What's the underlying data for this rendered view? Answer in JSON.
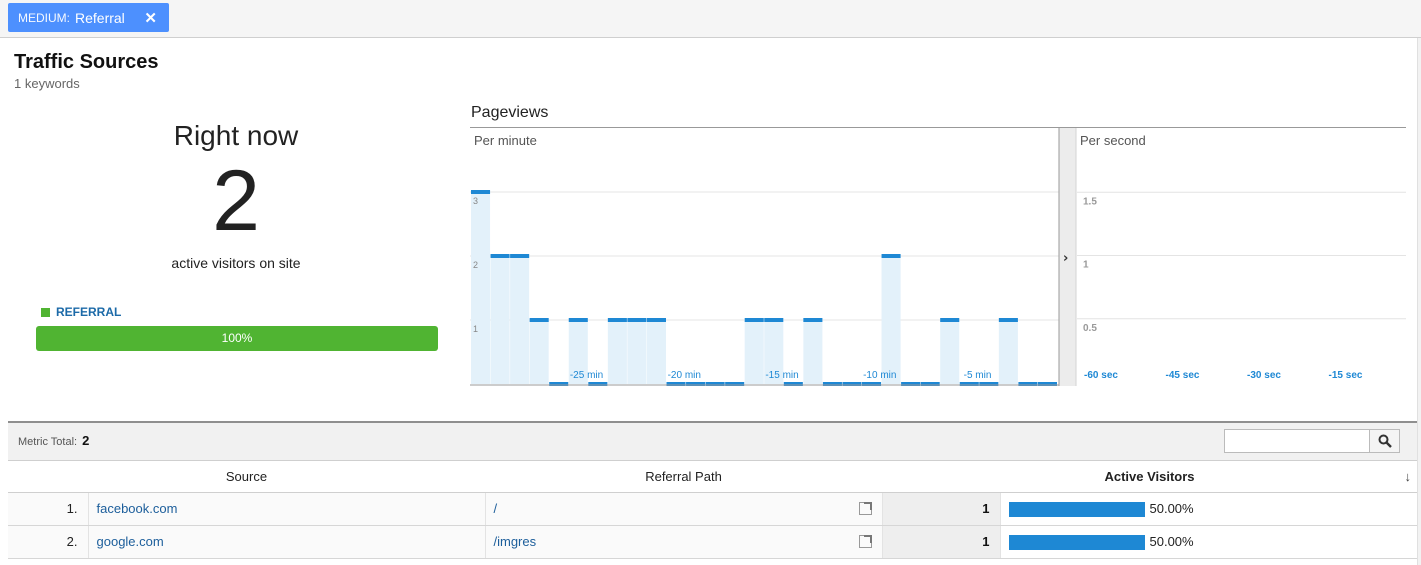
{
  "filter": {
    "key": "MEDIUM:",
    "value": "Referral",
    "close": "✕"
  },
  "header": {
    "title": "Traffic Sources",
    "subtitle": "1 keywords"
  },
  "summary": {
    "right_now": "Right now",
    "count": "2",
    "active_label": "active visitors on site",
    "legend": "REFERRAL",
    "percent_label": "100%",
    "percent": 100,
    "bar_color": "#50b432"
  },
  "pageviews": {
    "title": "Pageviews",
    "per_minute_label": "Per minute",
    "per_second_label": "Per second",
    "expand_icon": "chevron-right-icon"
  },
  "chart_data": [
    {
      "type": "bar",
      "title": "Per minute",
      "x": [
        -30,
        -29,
        -28,
        -27,
        -26,
        -25,
        -24,
        -23,
        -22,
        -21,
        -20,
        -19,
        -18,
        -17,
        -16,
        -15,
        -14,
        -13,
        -12,
        -11,
        -10,
        -9,
        -8,
        -7,
        -6,
        -5,
        -4,
        -3,
        -2,
        -1
      ],
      "values": [
        3,
        2,
        2,
        1,
        0,
        1,
        0,
        1,
        1,
        1,
        0,
        0,
        0,
        0,
        1,
        1,
        0,
        1,
        0,
        0,
        0,
        2,
        0,
        0,
        1,
        0,
        0,
        1,
        0,
        0
      ],
      "xticks": [
        -25,
        -20,
        -15,
        -10,
        -5
      ],
      "xtick_labels": [
        "-25 min",
        "-20 min",
        "-15 min",
        "-10 min",
        "-5 min"
      ],
      "yticks": [
        1,
        2,
        3
      ],
      "ytick_labels": [
        "1",
        "2",
        "3"
      ],
      "ylim": [
        0,
        3
      ],
      "grid": true,
      "color": "#1e88d4"
    },
    {
      "type": "bar",
      "title": "Per second",
      "xticks": [
        -60,
        -45,
        -30,
        -15
      ],
      "xtick_labels": [
        "-60 sec",
        "-45 sec",
        "-30 sec",
        "-15 sec"
      ],
      "yticks": [
        0.5,
        1,
        1.5
      ],
      "ytick_labels": [
        "0.5",
        "1",
        "1.5"
      ],
      "ylim": [
        0,
        2
      ],
      "values": [],
      "grid": true
    }
  ],
  "table": {
    "metric_label": "Metric Total:",
    "metric_value": "2",
    "search_placeholder": "",
    "columns": {
      "source": "Source",
      "path": "Referral Path",
      "active": "Active Visitors",
      "sort_icon": "↓"
    },
    "rows": [
      {
        "index": "1.",
        "source": "facebook.com",
        "path": "/",
        "visitors": "1",
        "pct_label": "50.00%",
        "pct": 50
      },
      {
        "index": "2.",
        "source": "google.com",
        "path": "/imgres",
        "visitors": "1",
        "pct_label": "50.00%",
        "pct": 50
      }
    ]
  }
}
